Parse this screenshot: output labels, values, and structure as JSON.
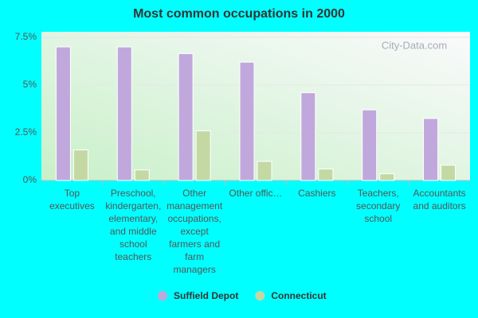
{
  "chart_data": {
    "type": "bar",
    "title": "Most common occupations in 2000",
    "watermark": "City-Data.com",
    "categories": [
      "Top executives",
      "Preschool, kindergarten, elementary, and middle school teachers",
      "Other management occupations, except farmers and farm managers",
      "Other offic…",
      "Cashiers",
      "Teachers, secondary school",
      "Accountants and auditors"
    ],
    "series": [
      {
        "name": "Suffield Depot",
        "color": "#c0a8dc",
        "values": [
          7.0,
          7.0,
          6.65,
          6.2,
          4.6,
          3.7,
          3.25
        ]
      },
      {
        "name": "Connecticut",
        "color": "#c4d8a4",
        "values": [
          1.6,
          0.55,
          2.6,
          1.0,
          0.6,
          0.35,
          0.8
        ]
      }
    ],
    "ylim": [
      0,
      7.5
    ],
    "yticks": [
      {
        "value": 0,
        "label": "0%"
      },
      {
        "value": 2.5,
        "label": "2.5%"
      },
      {
        "value": 5,
        "label": "5%"
      },
      {
        "value": 7.5,
        "label": "7.5%"
      }
    ],
    "grid": true,
    "legend": "bottom"
  }
}
